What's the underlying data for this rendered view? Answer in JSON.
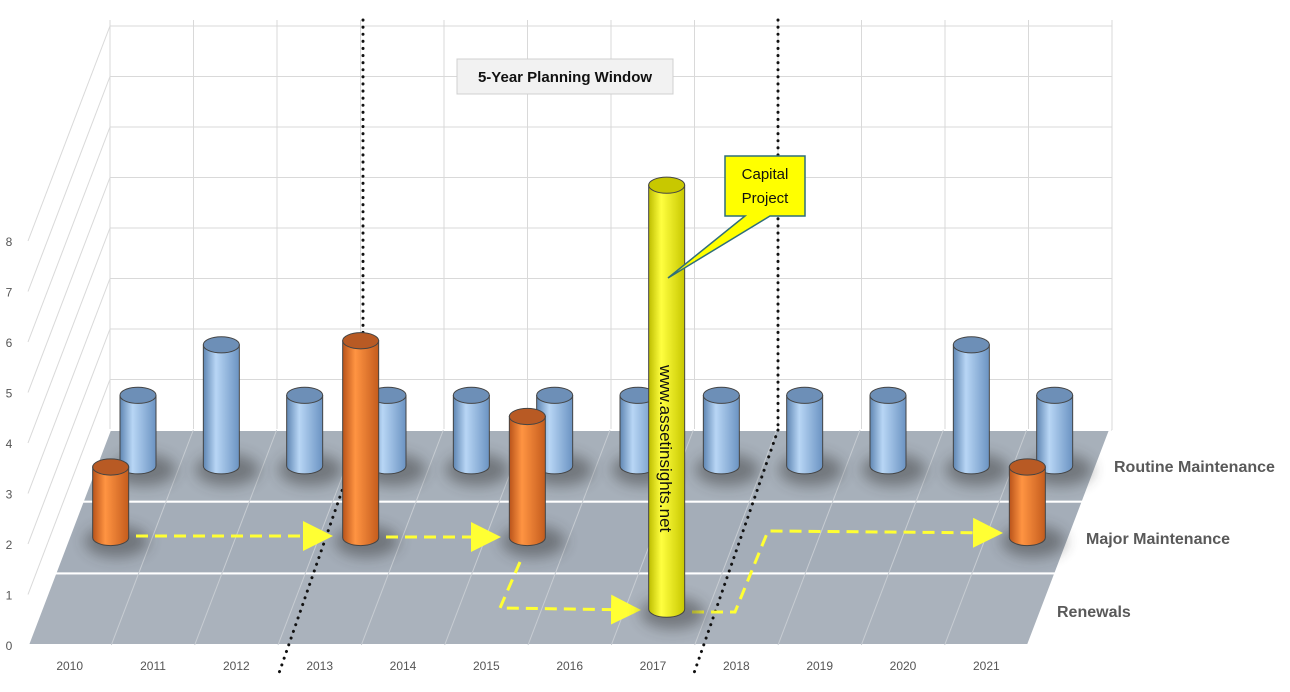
{
  "chart_data": {
    "type": "bar",
    "subtype": "3d-cylinder",
    "title": "5-Year Planning Window",
    "xlabel": "",
    "ylabel": "",
    "ylim": [
      0,
      8
    ],
    "yticks": [
      "0",
      "1",
      "2",
      "3",
      "4",
      "5",
      "6",
      "7",
      "8"
    ],
    "categories": [
      "2010",
      "2011",
      "2012",
      "2013",
      "2014",
      "2015",
      "2016",
      "2017",
      "2018",
      "2019",
      "2020",
      "2021"
    ],
    "grid": true,
    "series": [
      {
        "name": "Routine Maintenance",
        "color": "#9cc3ea",
        "values": [
          1,
          2,
          1,
          1,
          1,
          1,
          1,
          1,
          1,
          1,
          2,
          1
        ]
      },
      {
        "name": "Major Maintenance",
        "color": "#f5822f",
        "values": [
          1,
          0,
          0,
          3.5,
          0,
          2,
          0,
          0,
          0,
          0,
          0,
          1
        ]
      },
      {
        "name": "Renewals",
        "color": "#ffff00",
        "values": [
          0,
          0,
          0,
          0,
          0,
          0,
          0,
          8,
          0,
          0,
          0,
          0
        ]
      }
    ],
    "annotations": {
      "callout": "Capital\nProject",
      "watermark": "www.assetinsights.net"
    }
  },
  "colors": {
    "routine": "#9cc3ea",
    "major": "#f5822f",
    "renewal": "#ffff00",
    "floor": "#a9b1bb",
    "grid": "#d9d9d9",
    "arrow": "#ffff33"
  }
}
